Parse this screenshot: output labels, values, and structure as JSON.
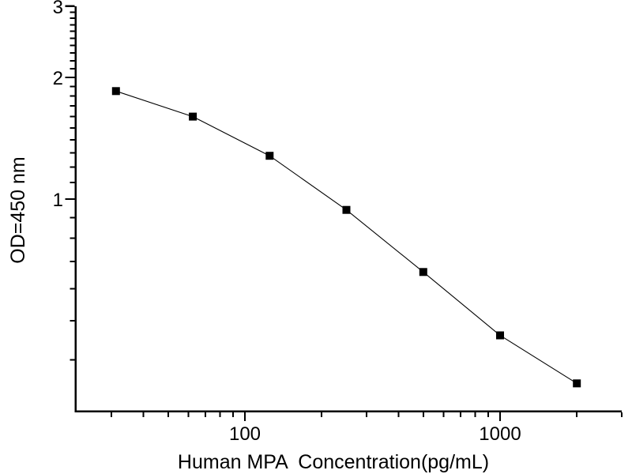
{
  "figure": {
    "background": "#ffffff",
    "axis_color": "#000000",
    "text_color": "#000000"
  },
  "chart_data": {
    "type": "scatter",
    "title": "",
    "xlabel": "Human MPA  Concentration(pg/mL)",
    "ylabel": "OD=450 nm",
    "x_scale": "log",
    "y_scale": "log",
    "xlim": [
      21.7,
      3000
    ],
    "ylim": [
      0.3,
      3
    ],
    "grid": false,
    "legend": "none",
    "x_major_ticks": [
      100,
      1000
    ],
    "x_major_tick_labels": [
      "100",
      "1000"
    ],
    "x_minor_ticks": [
      30,
      40,
      50,
      60,
      70,
      80,
      90,
      200,
      300,
      400,
      500,
      600,
      700,
      800,
      900,
      2000,
      3000
    ],
    "y_major_ticks": [
      1,
      2,
      3
    ],
    "y_major_tick_labels": [
      "1",
      "2",
      "3"
    ],
    "y_minor_ticks": [
      0.4,
      0.5,
      0.6,
      0.7,
      0.8,
      0.9,
      1.1,
      1.2,
      1.3,
      1.4,
      1.5,
      1.6,
      1.7,
      1.8,
      1.9,
      2.1,
      2.2,
      2.3,
      2.4,
      2.5,
      2.6,
      2.7,
      2.8,
      2.9
    ],
    "series": [
      {
        "marker": "filled-square",
        "marker_color": "#000000",
        "line_color": "#000000",
        "points": [
          {
            "x": 31.25,
            "y": 1.85
          },
          {
            "x": 62.5,
            "y": 1.6
          },
          {
            "x": 125,
            "y": 1.28
          },
          {
            "x": 250,
            "y": 0.94
          },
          {
            "x": 500,
            "y": 0.66
          },
          {
            "x": 1000,
            "y": 0.46
          },
          {
            "x": 2000,
            "y": 0.35
          }
        ]
      }
    ]
  }
}
